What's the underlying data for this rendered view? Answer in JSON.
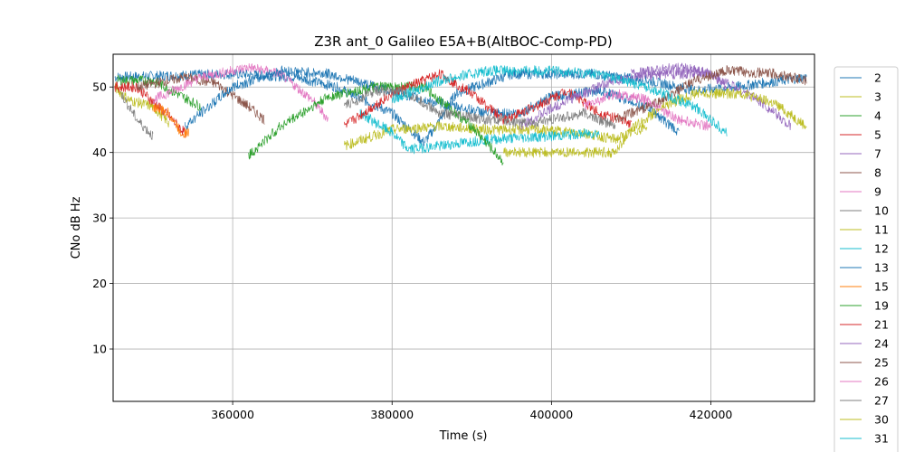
{
  "chart_data": {
    "type": "line",
    "title": "Z3R ant_0 Galileo E5A+B(AltBOC-Comp-PD)",
    "xlabel": "Time (s)",
    "ylabel": "CNo dB Hz",
    "xlim": [
      345000,
      433000
    ],
    "ylim": [
      2,
      55
    ],
    "xticks": [
      360000,
      380000,
      400000,
      420000
    ],
    "yticks": [
      10,
      20,
      30,
      40,
      50
    ],
    "grid": true,
    "legend_position": "right-outside",
    "series": [
      {
        "name": "2",
        "color": "#1f77b4",
        "points": [
          [
            345200,
            51.5
          ],
          [
            360000,
            52
          ],
          [
            368000,
            51.5
          ],
          [
            373000,
            50
          ],
          [
            380000,
            46
          ],
          [
            384000,
            41.5
          ],
          [
            385500,
            44
          ],
          [
            388000,
            49
          ],
          [
            395000,
            52
          ],
          [
            405000,
            52
          ],
          [
            412000,
            51
          ],
          [
            418000,
            49.5
          ],
          [
            423000,
            50
          ],
          [
            432000,
            51.5
          ]
        ]
      },
      {
        "name": "3",
        "color": "#bcbd22",
        "points": [
          [
            345200,
            50
          ],
          [
            347000,
            48
          ],
          [
            350000,
            47
          ],
          [
            352000,
            44.5
          ]
        ]
      },
      {
        "name": "4",
        "color": "#2ca02c",
        "points": [
          [
            345500,
            51
          ],
          [
            350000,
            51
          ],
          [
            356000,
            47
          ]
        ]
      },
      {
        "name": "5",
        "color": "#d62728",
        "points": [
          [
            345200,
            50
          ],
          [
            348000,
            50
          ],
          [
            352000,
            45.5
          ],
          [
            354000,
            43
          ]
        ]
      },
      {
        "name": "7",
        "color": "#9467bd",
        "points": [
          [
            410000,
            52
          ],
          [
            416000,
            53
          ],
          [
            420000,
            52
          ],
          [
            422000,
            50
          ]
        ]
      },
      {
        "name": "8",
        "color": "#8c564b",
        "points": [
          [
            348000,
            50
          ],
          [
            354000,
            51.5
          ],
          [
            358000,
            50.5
          ],
          [
            362000,
            47
          ],
          [
            364000,
            45
          ]
        ]
      },
      {
        "name": "9",
        "color": "#e377c2",
        "points": [
          [
            350000,
            48
          ],
          [
            356000,
            51.5
          ],
          [
            362000,
            53
          ],
          [
            366000,
            52
          ],
          [
            370000,
            48
          ],
          [
            372000,
            45
          ]
        ]
      },
      {
        "name": "10",
        "color": "#7f7f7f",
        "points": [
          [
            346000,
            49
          ],
          [
            348000,
            45
          ],
          [
            350000,
            42.5
          ]
        ]
      },
      {
        "name": "11",
        "color": "#bcbd22",
        "points": [
          [
            374000,
            41
          ],
          [
            380000,
            43.5
          ],
          [
            386000,
            44
          ],
          [
            392000,
            43.5
          ],
          [
            398000,
            43.5
          ],
          [
            404000,
            43
          ],
          [
            408000,
            42
          ],
          [
            412000,
            44
          ]
        ]
      },
      {
        "name": "12",
        "color": "#17becf",
        "points": [
          [
            376000,
            46
          ],
          [
            380000,
            43
          ],
          [
            382000,
            40.5
          ],
          [
            386000,
            41
          ],
          [
            392000,
            42
          ],
          [
            400000,
            42.5
          ],
          [
            406000,
            43
          ]
        ]
      },
      {
        "name": "13",
        "color": "#1f77b4",
        "points": [
          [
            354000,
            44
          ],
          [
            360000,
            50
          ],
          [
            366000,
            52.5
          ],
          [
            372000,
            52
          ],
          [
            378000,
            50
          ],
          [
            384000,
            48
          ],
          [
            392000,
            46
          ],
          [
            396000,
            46
          ],
          [
            400000,
            48.5
          ],
          [
            406000,
            49.5
          ],
          [
            412000,
            47
          ],
          [
            416000,
            43
          ]
        ]
      },
      {
        "name": "15",
        "color": "#ff7f0e",
        "points": [
          [
            350000,
            47
          ],
          [
            352000,
            46
          ],
          [
            353500,
            43
          ],
          [
            354500,
            43
          ]
        ]
      },
      {
        "name": "19",
        "color": "#2ca02c",
        "points": [
          [
            362000,
            39.5
          ],
          [
            366000,
            44
          ],
          [
            372000,
            48.5
          ],
          [
            378000,
            50
          ],
          [
            384000,
            50
          ],
          [
            390000,
            44
          ],
          [
            394000,
            38.5
          ]
        ]
      },
      {
        "name": "21",
        "color": "#d62728",
        "points": [
          [
            374000,
            44
          ],
          [
            380000,
            49
          ],
          [
            386000,
            52
          ],
          [
            390000,
            49
          ],
          [
            394000,
            45
          ],
          [
            398000,
            47
          ],
          [
            402000,
            49.5
          ],
          [
            406000,
            46
          ],
          [
            410000,
            44.5
          ]
        ]
      },
      {
        "name": "24",
        "color": "#9467bd",
        "points": [
          [
            396000,
            44
          ],
          [
            402000,
            48
          ],
          [
            408000,
            51
          ],
          [
            414000,
            52
          ],
          [
            420000,
            52
          ],
          [
            426000,
            48
          ],
          [
            430000,
            44
          ]
        ]
      },
      {
        "name": "25",
        "color": "#8c564b",
        "points": [
          [
            408000,
            45
          ],
          [
            414000,
            48
          ],
          [
            418000,
            51
          ],
          [
            422000,
            52.5
          ],
          [
            428000,
            52
          ],
          [
            432000,
            51
          ]
        ]
      },
      {
        "name": "26",
        "color": "#e377c2",
        "points": [
          [
            404000,
            47
          ],
          [
            408000,
            49
          ],
          [
            412000,
            48
          ],
          [
            416000,
            45
          ],
          [
            420000,
            44
          ]
        ]
      },
      {
        "name": "27",
        "color": "#7f7f7f",
        "points": [
          [
            374000,
            47
          ],
          [
            378000,
            49.5
          ],
          [
            382000,
            49
          ],
          [
            386000,
            46
          ],
          [
            392000,
            45
          ],
          [
            398000,
            44.5
          ],
          [
            404000,
            46
          ],
          [
            408000,
            44
          ]
        ]
      },
      {
        "name": "30",
        "color": "#bcbd22",
        "points": [
          [
            394000,
            40
          ],
          [
            400000,
            40
          ],
          [
            406000,
            40
          ],
          [
            408000,
            40
          ],
          [
            410000,
            43.5
          ],
          [
            414000,
            47
          ],
          [
            418000,
            49
          ],
          [
            420000,
            49
          ],
          [
            424000,
            49
          ],
          [
            428000,
            47.5
          ],
          [
            432000,
            44
          ]
        ]
      },
      {
        "name": "31",
        "color": "#17becf",
        "points": [
          [
            380000,
            48
          ],
          [
            386000,
            51
          ],
          [
            392000,
            52.5
          ],
          [
            400000,
            52.5
          ],
          [
            406000,
            52
          ],
          [
            412000,
            50
          ],
          [
            418000,
            47
          ],
          [
            422000,
            43
          ]
        ]
      }
    ]
  }
}
